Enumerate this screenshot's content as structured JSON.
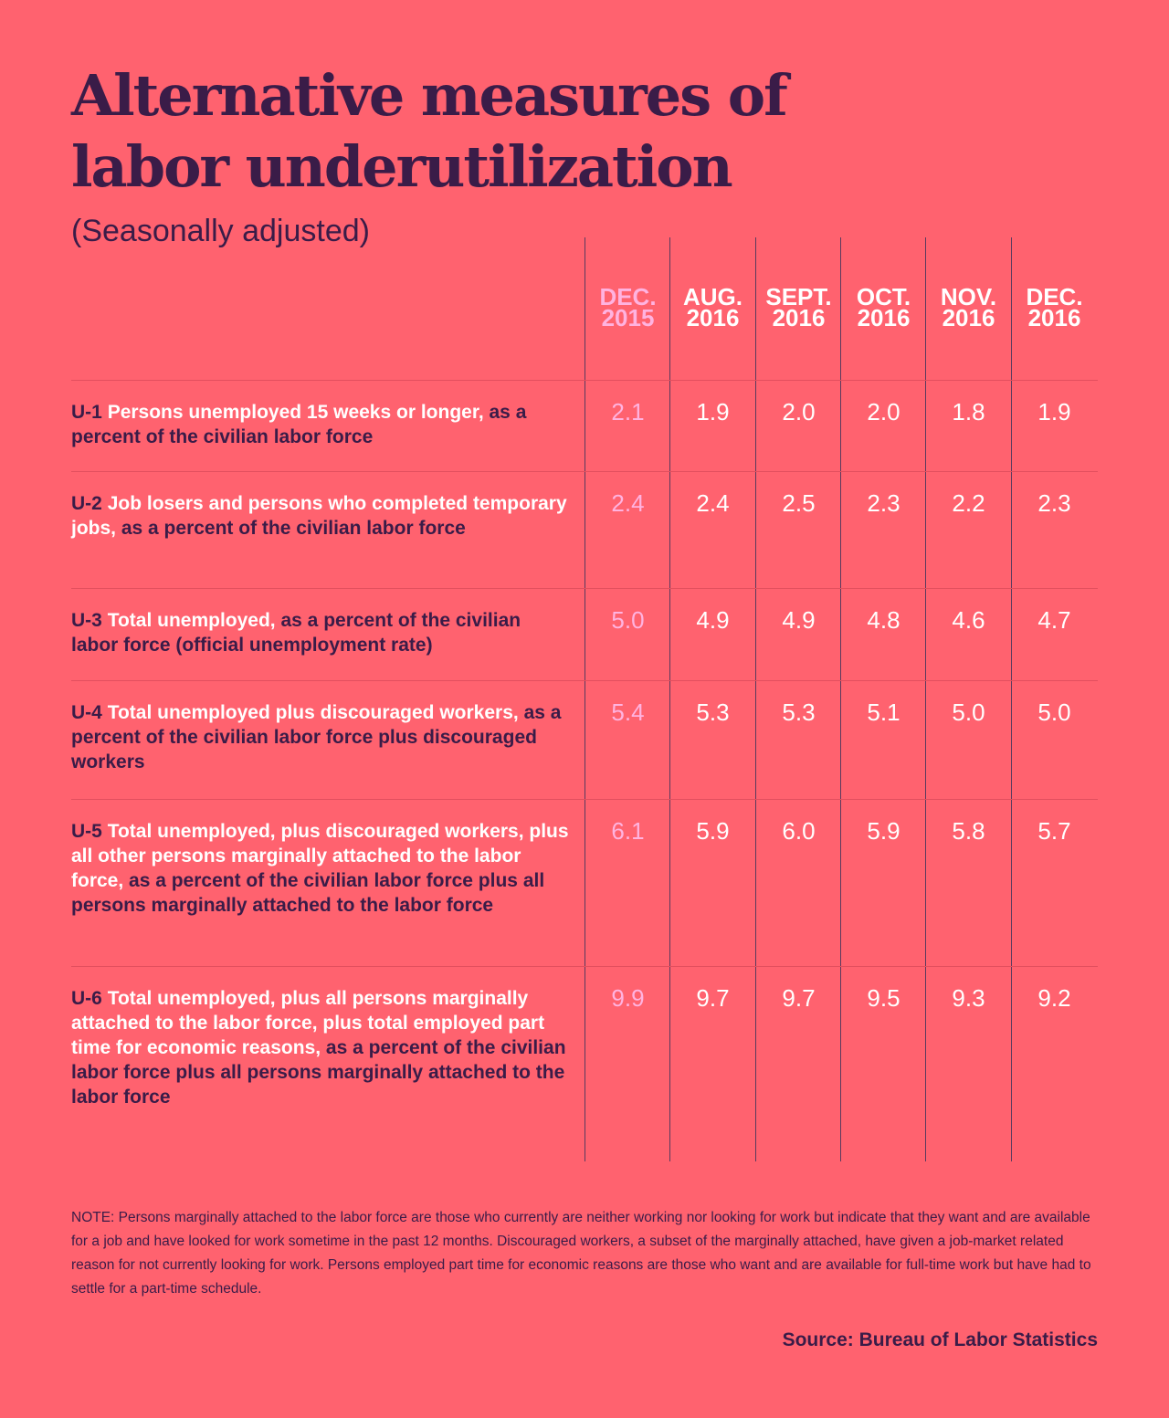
{
  "title": {
    "line1": "Alternative measures of",
    "line2": "labor underutilization"
  },
  "subtitle": "(Seasonally adjusted)",
  "colors": {
    "background": "#FF626F",
    "text_dark": "#3A1C48",
    "text_light": "#FFFFFF",
    "highlight_column": "#FFB3E0"
  },
  "chart_data": {
    "type": "table",
    "columns": [
      {
        "line1": "DEC.",
        "line2": "2015"
      },
      {
        "line1": "AUG.",
        "line2": "2016"
      },
      {
        "line1": "SEPT.",
        "line2": "2016"
      },
      {
        "line1": "OCT.",
        "line2": "2016"
      },
      {
        "line1": "NOV.",
        "line2": "2016"
      },
      {
        "line1": "DEC.",
        "line2": "2016"
      }
    ],
    "rows": [
      {
        "code": "U-1",
        "main": "Persons unemployed 15 weeks or longer,",
        "rest": " as a percent of the civilian labor force",
        "values": [
          "2.1",
          "1.9",
          "2.0",
          "2.0",
          "1.8",
          "1.9"
        ]
      },
      {
        "code": "U-2",
        "main": "Job losers and persons who completed temporary jobs,",
        "rest": " as a percent of the civilian labor force",
        "values": [
          "2.4",
          "2.4",
          "2.5",
          "2.3",
          "2.2",
          "2.3"
        ]
      },
      {
        "code": "U-3",
        "main": "Total unemployed,",
        "rest": " as a percent of the civilian labor force (official unemployment rate)",
        "values": [
          "5.0",
          "4.9",
          "4.9",
          "4.8",
          "4.6",
          "4.7"
        ]
      },
      {
        "code": "U-4",
        "main": "Total unemployed plus discouraged workers,",
        "rest": " as a percent of the civilian labor force plus discouraged workers",
        "values": [
          "5.4",
          "5.3",
          "5.3",
          "5.1",
          "5.0",
          "5.0"
        ]
      },
      {
        "code": "U-5",
        "main": "Total unemployed, plus discouraged workers, plus all other persons marginally attached to the labor force,",
        "rest": " as a percent of the civilian labor force plus all persons marginally attached to the labor force",
        "values": [
          "6.1",
          "5.9",
          "6.0",
          "5.9",
          "5.8",
          "5.7"
        ]
      },
      {
        "code": "U-6",
        "main": "Total unemployed, plus all persons marginally attached to the labor force, plus total employed part time for economic reasons,",
        "rest": " as a percent of the civilian labor force plus all persons marginally attached to the labor force",
        "values": [
          "9.9",
          "9.7",
          "9.7",
          "9.5",
          "9.3",
          "9.2"
        ]
      }
    ]
  },
  "note": "NOTE: Persons marginally attached to the labor force are those who currently are neither working nor looking for work but indicate that they want and are available for a job and have looked for work sometime in the past 12 months. Discouraged workers, a subset of the marginally attached, have given a job-market related reason for not currently looking for work. Persons employed part time for economic reasons are those who want and are available for full-time work but have had to settle for a part-time schedule.",
  "source": "Source: Bureau of Labor Statistics"
}
